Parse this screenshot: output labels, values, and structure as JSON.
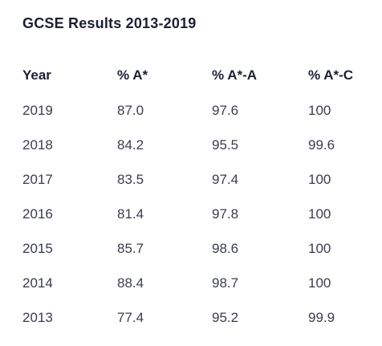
{
  "table": {
    "title": "GCSE Results 2013-2019",
    "headers": [
      "Year",
      "% A*",
      "% A*-A",
      "% A*-C"
    ],
    "rows": [
      [
        "2019",
        "87.0",
        "97.6",
        "100"
      ],
      [
        "2018",
        "84.2",
        "95.5",
        "99.6"
      ],
      [
        "2017",
        "83.5",
        "97.4",
        "100"
      ],
      [
        "2016",
        "81.4",
        "97.8",
        "100"
      ],
      [
        "2015",
        "85.7",
        "98.6",
        "100"
      ],
      [
        "2014",
        "88.4",
        "98.7",
        "100"
      ],
      [
        "2013",
        "77.4",
        "95.2",
        "99.9"
      ]
    ]
  }
}
